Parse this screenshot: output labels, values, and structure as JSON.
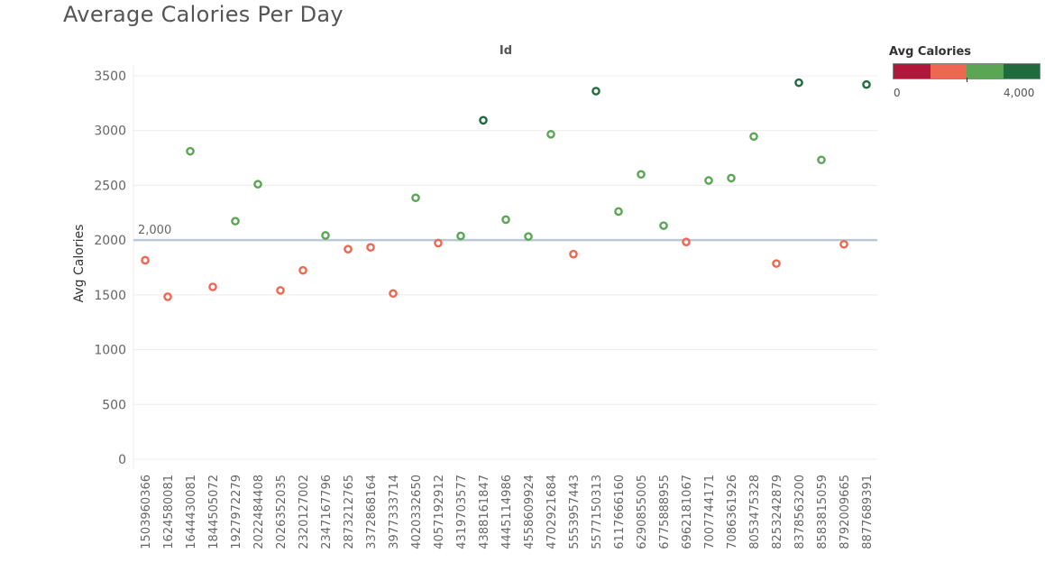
{
  "chart_data": {
    "type": "scatter",
    "title": "Average Calories Per Day",
    "column_header": "Id",
    "ylabel": "Avg Calories",
    "ylim": [
      0,
      3600
    ],
    "yticks": [
      0,
      500,
      1000,
      1500,
      2000,
      2500,
      3000,
      3500
    ],
    "reference_line": {
      "value": 2000,
      "label": "2,000"
    },
    "grid": true,
    "categories": [
      "1503960366",
      "1624580081",
      "1644430081",
      "1844505072",
      "1927972279",
      "2022484408",
      "2026352035",
      "2320127002",
      "2347167796",
      "2873212765",
      "3372868164",
      "3977333714",
      "4020332650",
      "4057192912",
      "4319703577",
      "4388161847",
      "4445114986",
      "4558609924",
      "4702921684",
      "5553957443",
      "5577150313",
      "6117666160",
      "6290855005",
      "6775888955",
      "6962181067",
      "7007744171",
      "7086361926",
      "8053475328",
      "8253242879",
      "8378563200",
      "8583815059",
      "8792009665",
      "8877689391"
    ],
    "values": [
      1816,
      1483,
      2811,
      1573,
      2173,
      2510,
      1541,
      1724,
      2043,
      1917,
      1934,
      1513,
      2386,
      1973,
      2038,
      3094,
      2187,
      2033,
      2966,
      1872,
      3360,
      2261,
      2600,
      2132,
      1983,
      2544,
      2566,
      2946,
      1786,
      3437,
      2732,
      1962,
      3420
    ],
    "legend": {
      "title": "Avg Calories",
      "min_label": "0",
      "max_label": "4,000",
      "colors": [
        "#b2163a",
        "#ef6651",
        "#5aa655",
        "#1f6b3d"
      ]
    }
  }
}
